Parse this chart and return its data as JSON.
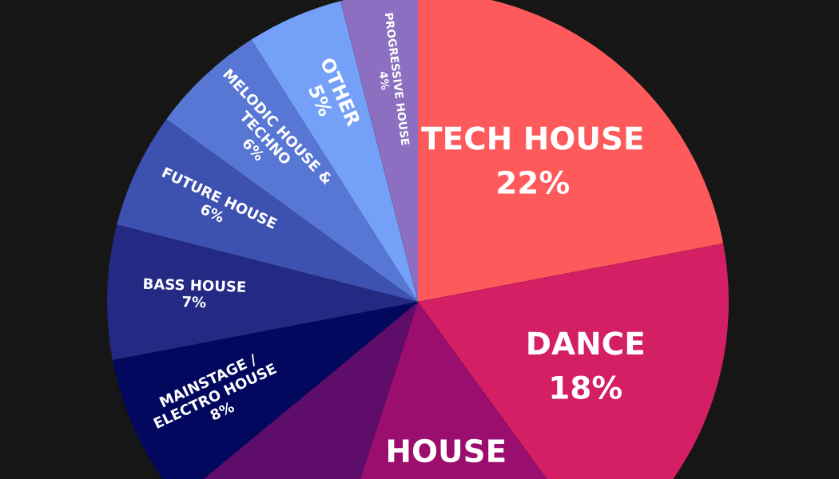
{
  "chart_data": {
    "type": "pie",
    "categories": [
      "TECH HOUSE",
      "DANCE",
      "HOUSE",
      null,
      "MAINSTAGE /\nELECTRO HOUSE",
      "BASS HOUSE",
      "FUTURE HOUSE",
      "MELODIC HOUSE &\nTECHNO",
      "OTHER",
      "PROGRESSIVE HOUSE"
    ],
    "values": [
      22,
      18,
      15,
      9,
      8,
      7,
      6,
      6,
      5,
      4
    ],
    "value_labels": [
      "22%",
      "18%",
      null,
      null,
      "8%",
      "7%",
      "6%",
      "6%",
      "5%",
      "4%"
    ],
    "colors": [
      "#fe5a5c",
      "#d41f64",
      "#9b0e6e",
      "#5f0d6b",
      "#02085e",
      "#242a84",
      "#3d52b0",
      "#5876d4",
      "#74a0f8",
      "#8c6fc1"
    ]
  }
}
